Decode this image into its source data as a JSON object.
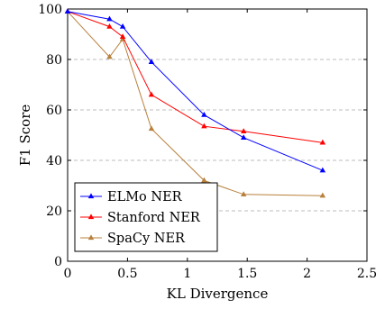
{
  "chart_data": {
    "type": "line",
    "title": "",
    "xlabel": "KL Divergence",
    "ylabel": "F1 Score",
    "xlim": [
      0,
      2.5
    ],
    "ylim": [
      0,
      100
    ],
    "x_ticks": [
      "0",
      "0.5",
      "1",
      "1.5",
      "2",
      "2.5"
    ],
    "y_ticks": [
      "0",
      "20",
      "40",
      "60",
      "80",
      "100"
    ],
    "grid": "horizontal dashed",
    "legend_position": "bottom-left",
    "series": [
      {
        "name": "ELMo NER",
        "color": "#0000ff",
        "marker": "triangle",
        "x": [
          0,
          0.35,
          0.46,
          0.7,
          1.14,
          1.47,
          2.13
        ],
        "y": [
          99,
          96,
          93,
          79,
          58,
          49,
          36
        ]
      },
      {
        "name": "Stanford NER",
        "color": "#ff0000",
        "marker": "triangle",
        "x": [
          0,
          0.35,
          0.46,
          0.7,
          1.14,
          1.47,
          2.13
        ],
        "y": [
          99,
          93,
          89,
          66,
          53.5,
          51.5,
          47
        ]
      },
      {
        "name": "SpaCy NER",
        "color": "#b8803c",
        "marker": "triangle",
        "x": [
          0,
          0.35,
          0.46,
          0.7,
          1.14,
          1.47,
          2.13
        ],
        "y": [
          99,
          81,
          88,
          52.5,
          32,
          26.5,
          26
        ]
      }
    ]
  }
}
